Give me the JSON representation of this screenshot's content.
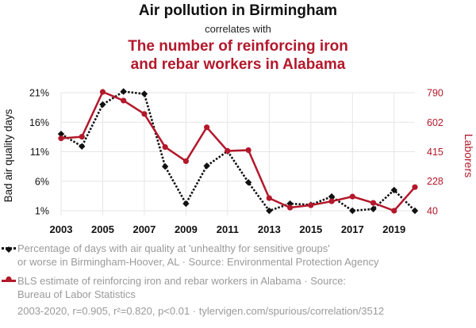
{
  "header": {
    "title": "Air pollution in Birmingham",
    "connector": "correlates with",
    "title2_line1": "The number of reinforcing iron",
    "title2_line2": "and rebar workers in Alabama"
  },
  "legend": {
    "series1_line1": "Percentage of days with air quality at 'unhealthy for sensitive groups'",
    "series1_line2": "or worse in Birmingham-Hoover, AL · Source: Environmental Protection Agency",
    "series2_line1": "BLS estimate of reinforcing iron and rebar workers in Alabama · Source:",
    "series2_line2": "Bureau of Labor Statistics"
  },
  "footer": "2003-2020, r=0.905, r²=0.820, p<0.01 · tylervigen.com/spurious/correlation/3512",
  "colors": {
    "series1": "#111111",
    "series2": "#b3182b",
    "grid": "#e6e6e6"
  },
  "chart_data": {
    "type": "line",
    "x": [
      2003,
      2004,
      2005,
      2006,
      2007,
      2008,
      2009,
      2010,
      2011,
      2012,
      2013,
      2014,
      2015,
      2016,
      2017,
      2018,
      2019,
      2020
    ],
    "x_ticks": [
      "2003",
      "2005",
      "2007",
      "2009",
      "2011",
      "2013",
      "2015",
      "2017",
      "2019"
    ],
    "y_left": {
      "label": "Bad air quality days",
      "ticks": [
        "21%",
        "16%",
        "11%",
        "6%",
        "1%"
      ],
      "tick_values": [
        21,
        16,
        11,
        6,
        1
      ],
      "range": [
        1,
        21
      ]
    },
    "y_right": {
      "label": "Laborers",
      "ticks": [
        "790",
        "602",
        "415",
        "228",
        "40"
      ],
      "tick_values": [
        790,
        602,
        415,
        228,
        40
      ],
      "range": [
        40,
        790
      ]
    },
    "grid": true,
    "series": [
      {
        "axis": "left",
        "style": "dotted",
        "marker": "diamond",
        "values": [
          14.0,
          11.9,
          19.0,
          21.2,
          20.8,
          8.5,
          2.2,
          8.6,
          11.1,
          5.8,
          1.0,
          2.2,
          2.0,
          3.4,
          1.0,
          1.3,
          4.5,
          1.0
        ]
      },
      {
        "axis": "right",
        "style": "solid",
        "marker": "circle",
        "values": [
          500,
          510,
          795,
          740,
          655,
          445,
          355,
          570,
          420,
          425,
          120,
          60,
          75,
          100,
          130,
          90,
          40,
          190
        ]
      }
    ]
  }
}
